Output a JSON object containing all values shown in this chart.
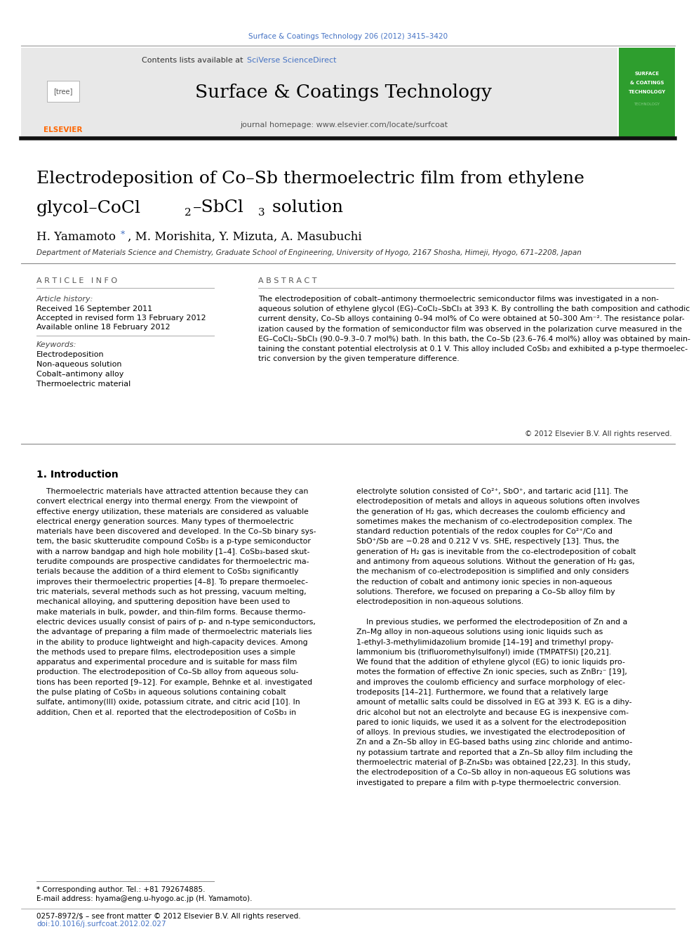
{
  "page_width": 9.92,
  "page_height": 13.23,
  "background_color": "#ffffff",
  "header_journal_ref": "Surface & Coatings Technology 206 (2012) 3415–3420",
  "header_ref_color": "#4472c4",
  "header_contents_text": "Contents lists available at ",
  "header_scidirect": "SciVerse ScienceDirect",
  "header_scidirect_color": "#4472c4",
  "journal_name": "Surface & Coatings Technology",
  "journal_homepage": "journal homepage: www.elsevier.com/locate/surfcoat",
  "header_bg_color": "#e8e8e8",
  "elsevier_logo_color": "#ff6600",
  "article_title_line1": "Electrodeposition of Co–Sb thermoelectric film from ethylene",
  "article_title_line2a": "glycol–CoCl",
  "article_title_sub2": "2",
  "article_title_line2b": "–SbCl",
  "article_title_sub3": "3",
  "article_title_line2c": " solution",
  "authors_pre": "H. Yamamoto ",
  "authors_star": "*",
  "authors_post": ", M. Morishita, Y. Mizuta, A. Masubuchi",
  "affiliation": "Department of Materials Science and Chemistry, Graduate School of Engineering, University of Hyogo, 2167 Shosha, Himeji, Hyogo, 671–2208, Japan",
  "article_info_header": "A R T I C L E   I N F O",
  "abstract_header": "A B S T R A C T",
  "article_history_header": "Article history:",
  "received": "Received 16 September 2011",
  "accepted": "Accepted in revised form 13 February 2012",
  "available": "Available online 18 February 2012",
  "keywords_header": "Keywords:",
  "keywords": [
    "Electrodeposition",
    "Non-aqueous solution",
    "Cobalt–antimony alloy",
    "Thermoelectric material"
  ],
  "copyright": "© 2012 Elsevier B.V. All rights reserved.",
  "section1_header": "1. Introduction",
  "footer_text1": "* Corresponding author. Tel.: +81 792674885.",
  "footer_email": "E-mail address: hyama@eng.u-hyogo.ac.jp (H. Yamamoto).",
  "footer_issn": "0257-8972/$ – see front matter © 2012 Elsevier B.V. All rights reserved.",
  "footer_doi": "doi:10.1016/j.surfcoat.2012.02.027",
  "abstract_lines": [
    "The electrodeposition of cobalt–antimony thermoelectric semiconductor films was investigated in a non-",
    "aqueous solution of ethylene glycol (EG)–CoCl₂–SbCl₃ at 393 K. By controlling the bath composition and cathodic",
    "current density, Co–Sb alloys containing 0–94 mol% of Co were obtained at 50–300 Am⁻². The resistance polar-",
    "ization caused by the formation of semiconductor film was observed in the polarization curve measured in the",
    "EG–CoCl₂–SbCl₃ (90.0–9.3–0.7 mol%) bath. In this bath, the Co–Sb (23.6–76.4 mol%) alloy was obtained by main-",
    "taining the constant potential electrolysis at 0.1 V. This alloy included CoSb₃ and exhibited a p-type thermoelec-",
    "tric conversion by the given temperature difference."
  ],
  "col1_lines": [
    "    Thermoelectric materials have attracted attention because they can",
    "convert electrical energy into thermal energy. From the viewpoint of",
    "effective energy utilization, these materials are considered as valuable",
    "electrical energy generation sources. Many types of thermoelectric",
    "materials have been discovered and developed. In the Co–Sb binary sys-",
    "tem, the basic skutterudite compound CoSb₃ is a p-type semiconductor",
    "with a narrow bandgap and high hole mobility [1–4]. CoSb₃-based skut-",
    "terudite compounds are prospective candidates for thermoelectric ma-",
    "terials because the addition of a third element to CoSb₃ significantly",
    "improves their thermoelectric properties [4–8]. To prepare thermoelec-",
    "tric materials, several methods such as hot pressing, vacuum melting,",
    "mechanical alloying, and sputtering deposition have been used to",
    "make materials in bulk, powder, and thin-film forms. Because thermo-",
    "electric devices usually consist of pairs of p- and n-type semiconductors,",
    "the advantage of preparing a film made of thermoelectric materials lies",
    "in the ability to produce lightweight and high-capacity devices. Among",
    "the methods used to prepare films, electrodeposition uses a simple",
    "apparatus and experimental procedure and is suitable for mass film",
    "production. The electrodeposition of Co–Sb alloy from aqueous solu-",
    "tions has been reported [9–12]. For example, Behnke et al. investigated",
    "the pulse plating of CoSb₃ in aqueous solutions containing cobalt",
    "sulfate, antimony(III) oxide, potassium citrate, and citric acid [10]. In",
    "addition, Chen et al. reported that the electrodeposition of CoSb₃ in"
  ],
  "col2_lines": [
    "electrolyte solution consisted of Co²⁺, SbO⁺, and tartaric acid [11]. The",
    "electrodeposition of metals and alloys in aqueous solutions often involves",
    "the generation of H₂ gas, which decreases the coulomb efficiency and",
    "sometimes makes the mechanism of co-electrodeposition complex. The",
    "standard reduction potentials of the redox couples for Co²⁺/Co and",
    "SbO⁺/Sb are −0.28 and 0.212 V vs. SHE, respectively [13]. Thus, the",
    "generation of H₂ gas is inevitable from the co-electrodeposition of cobalt",
    "and antimony from aqueous solutions. Without the generation of H₂ gas,",
    "the mechanism of co-electrodeposition is simplified and only considers",
    "the reduction of cobalt and antimony ionic species in non-aqueous",
    "solutions. Therefore, we focused on preparing a Co–Sb alloy film by",
    "electrodeposition in non-aqueous solutions.",
    "",
    "    In previous studies, we performed the electrodeposition of Zn and a",
    "Zn–Mg alloy in non-aqueous solutions using ionic liquids such as",
    "1-ethyl-3-methylimidazolium bromide [14–19] and trimethyl propy-",
    "lammonium bis (trifluoromethylsulfonyl) imide (TMPATFSI) [20,21].",
    "We found that the addition of ethylene glycol (EG) to ionic liquids pro-",
    "motes the formation of effective Zn ionic species, such as ZnBr₂⁻ [19],",
    "and improves the coulomb efficiency and surface morphology of elec-",
    "trodeposits [14–21]. Furthermore, we found that a relatively large",
    "amount of metallic salts could be dissolved in EG at 393 K. EG is a dihy-",
    "dric alcohol but not an electrolyte and because EG is inexpensive com-",
    "pared to ionic liquids, we used it as a solvent for the electrodeposition",
    "of alloys. In previous studies, we investigated the electrodeposition of",
    "Zn and a Zn–Sb alloy in EG-based baths using zinc chloride and antimo-",
    "ny potassium tartrate and reported that a Zn–Sb alloy film including the",
    "thermoelectric material of β-Zn₄Sb₃ was obtained [22,23]. In this study,",
    "the electrodeposition of a Co–Sb alloy in non-aqueous EG solutions was",
    "investigated to prepare a film with p-type thermoelectric conversion."
  ]
}
